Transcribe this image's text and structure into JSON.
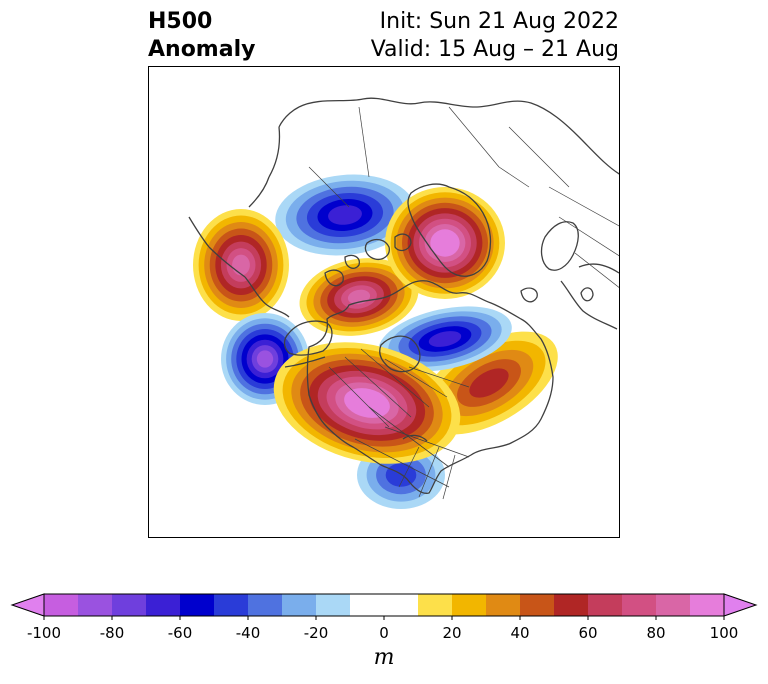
{
  "title": {
    "left_line1": "H500",
    "left_line2": "Anomaly",
    "right_line1": "Init: Sun 21 Aug 2022",
    "right_line2": "Valid: 15 Aug – 21 Aug"
  },
  "colorbar": {
    "unit": "m",
    "ticks": [
      "-100",
      "-80",
      "-60",
      "-40",
      "-20",
      "0",
      "20",
      "40",
      "60",
      "80",
      "100"
    ],
    "min": -100,
    "max": 100,
    "step": 10,
    "extend": "both",
    "colors": [
      "#c65ee0",
      "#9a52e0",
      "#6f3fdd",
      "#3b20d5",
      "#0000cd",
      "#2a3cd8",
      "#4f72e0",
      "#7aaeec",
      "#aad8f6",
      "#ffffff",
      "#ffffff",
      "#fde04a",
      "#f2b600",
      "#e08a14",
      "#c85518",
      "#b02625",
      "#c43d5c",
      "#d25083",
      "#d966a6",
      "#e67ddb"
    ],
    "extend_low_color": "#e080ee",
    "extend_high_color": "#e080ee"
  },
  "anomalies": [
    {
      "name": "positive-anomaly-canada-us",
      "sign": "positive",
      "peak_m": 100
    },
    {
      "name": "positive-anomaly-greenland-arctic",
      "sign": "positive",
      "peak_m": 100
    },
    {
      "name": "positive-anomaly-east-siberia",
      "sign": "positive",
      "peak_m": 80
    },
    {
      "name": "positive-anomaly-central-arctic",
      "sign": "positive",
      "peak_m": 80
    },
    {
      "name": "positive-anomaly-north-atlantic",
      "sign": "positive",
      "peak_m": 50
    },
    {
      "name": "negative-anomaly-north-pacific",
      "sign": "negative",
      "peak_m": -80
    },
    {
      "name": "negative-anomaly-hudson-bay",
      "sign": "negative",
      "peak_m": -60
    },
    {
      "name": "negative-anomaly-siberia",
      "sign": "negative",
      "peak_m": -60
    },
    {
      "name": "negative-anomaly-southeast-us",
      "sign": "negative",
      "peak_m": -40
    }
  ]
}
